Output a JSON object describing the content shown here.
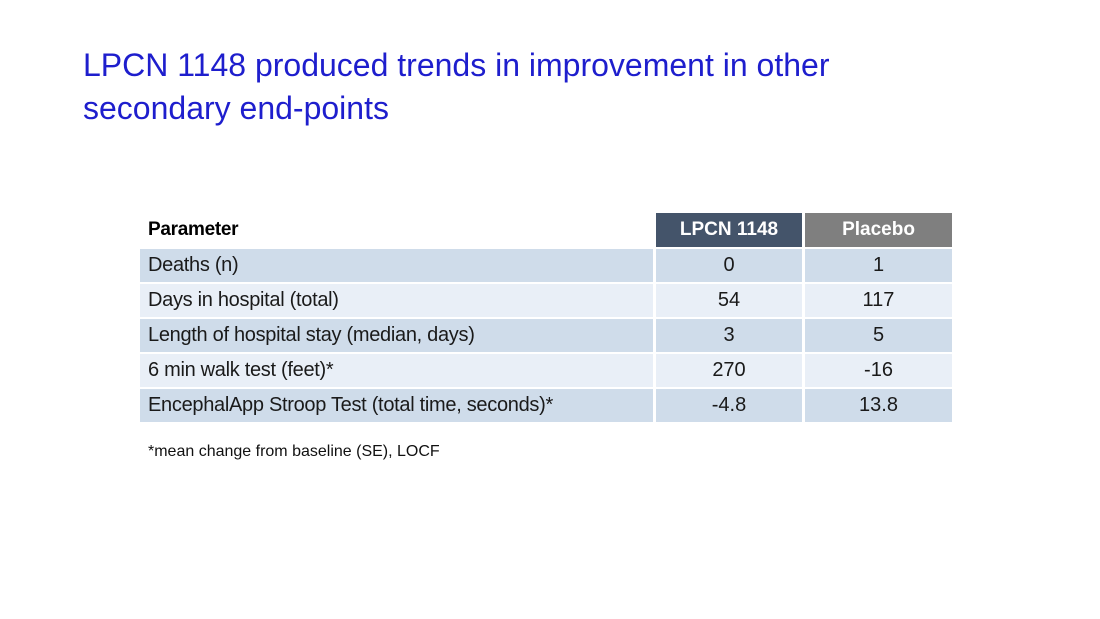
{
  "slide": {
    "title": "LPCN 1148 produced trends in improvement in other secondary end-points",
    "footnote": "*mean change from baseline (SE), LOCF"
  },
  "table": {
    "columns": [
      "Parameter",
      "LPCN 1148",
      "Placebo"
    ],
    "rows": [
      {
        "parameter": "Deaths (n)",
        "lpcn": "0",
        "placebo": "1"
      },
      {
        "parameter": "Days in hospital (total)",
        "lpcn": "54",
        "placebo": "117"
      },
      {
        "parameter": "Length of hospital stay (median, days)",
        "lpcn": "3",
        "placebo": "5"
      },
      {
        "parameter": "6 min walk test (feet)*",
        "lpcn": "270",
        "placebo": "-16"
      },
      {
        "parameter": "EncephalApp Stroop Test (total time, seconds)*",
        "lpcn": "-4.8",
        "placebo": "13.8"
      }
    ]
  },
  "colors": {
    "title-blue": "#1e1ecd",
    "header-dark": "#44546a",
    "header-gray": "#7f7f7f",
    "row-odd": "#cfdcea",
    "row-even": "#e9eff7",
    "text-dark": "#1a1a1a"
  }
}
